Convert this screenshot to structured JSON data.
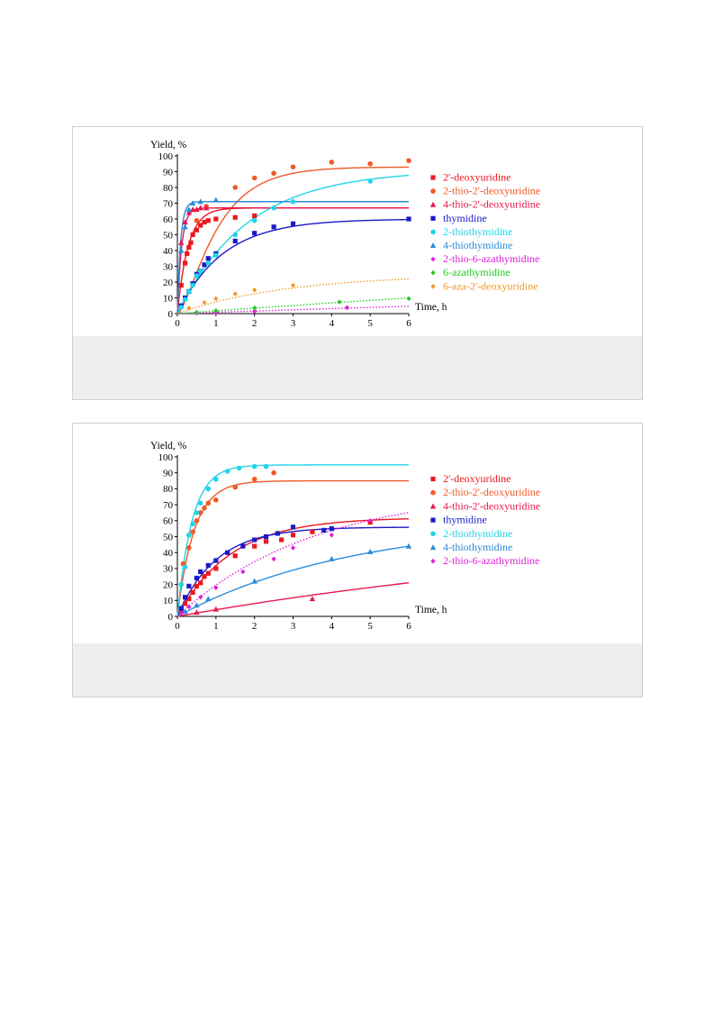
{
  "chart_data": [
    {
      "type": "scatter",
      "title": "",
      "ylabel": "Yield, %",
      "xlabel": "Time, h",
      "xlim": [
        0,
        6
      ],
      "ylim": [
        0,
        100
      ],
      "xticks": [
        0,
        1,
        2,
        3,
        4,
        5,
        6
      ],
      "yticks": [
        0,
        10,
        20,
        30,
        40,
        50,
        60,
        70,
        80,
        90,
        100
      ],
      "grid": false,
      "legend_position": "right",
      "series": [
        {
          "name": "2'-deoxyuridine",
          "color": "#e8191e",
          "marker": "square",
          "line": "solid",
          "fit": {
            "ymax": 67,
            "k": 3.6
          },
          "points": [
            [
              0.1,
              18
            ],
            [
              0.2,
              32
            ],
            [
              0.25,
              38
            ],
            [
              0.3,
              42
            ],
            [
              0.35,
              45
            ],
            [
              0.4,
              50
            ],
            [
              0.5,
              53
            ],
            [
              0.6,
              56
            ],
            [
              0.7,
              58
            ],
            [
              0.8,
              59
            ],
            [
              1.0,
              60
            ],
            [
              1.5,
              61
            ],
            [
              2.0,
              62
            ]
          ]
        },
        {
          "name": "2-thio-2'-deoxyuridine",
          "color": "#ef5a28",
          "marker": "circle",
          "line": "solid",
          "fit": {
            "ymax": 93,
            "k": 1.2,
            "lag": 0.15
          },
          "points": [
            [
              0.5,
              59
            ],
            [
              0.75,
              68
            ],
            [
              1.5,
              80
            ],
            [
              2.0,
              86
            ],
            [
              2.5,
              89
            ],
            [
              3.0,
              93
            ],
            [
              4.0,
              96
            ],
            [
              5.0,
              95
            ],
            [
              6.0,
              97
            ]
          ]
        },
        {
          "name": "4-thio-2'-deoxyuridine",
          "color": "#e8194f",
          "marker": "triangle",
          "line": "solid",
          "fit": {
            "ymax": 67,
            "k": 9
          },
          "points": [
            [
              0.1,
              45
            ],
            [
              0.2,
              58
            ],
            [
              0.3,
              64
            ],
            [
              0.4,
              66
            ],
            [
              0.5,
              66
            ],
            [
              0.6,
              67
            ],
            [
              0.75,
              67
            ]
          ]
        },
        {
          "name": "thymidine",
          "color": "#1a1ac8",
          "marker": "square",
          "line": "solid",
          "fit": {
            "ymax": 60,
            "k": 0.85
          },
          "points": [
            [
              0.1,
              5
            ],
            [
              0.2,
              10
            ],
            [
              0.3,
              14
            ],
            [
              0.4,
              19
            ],
            [
              0.5,
              25
            ],
            [
              0.6,
              27
            ],
            [
              0.7,
              31
            ],
            [
              0.8,
              35
            ],
            [
              1.0,
              38
            ],
            [
              1.5,
              46
            ],
            [
              2.0,
              51
            ],
            [
              2.5,
              55
            ],
            [
              3.0,
              57
            ],
            [
              6.0,
              60
            ]
          ]
        },
        {
          "name": "2-thiothymidine",
          "color": "#22d4e8",
          "marker": "circle",
          "line": "solid",
          "fit": {
            "ymax": 91,
            "k": 0.55
          },
          "points": [
            [
              0.1,
              4
            ],
            [
              0.2,
              9
            ],
            [
              0.3,
              14
            ],
            [
              0.4,
              18
            ],
            [
              0.5,
              24
            ],
            [
              0.6,
              27
            ],
            [
              0.8,
              32
            ],
            [
              1.0,
              37
            ],
            [
              1.5,
              50
            ],
            [
              2.0,
              59
            ],
            [
              2.5,
              67
            ],
            [
              3.0,
              71
            ],
            [
              5.0,
              84
            ]
          ]
        },
        {
          "name": "4-thiothymidine",
          "color": "#2a8cdc",
          "marker": "triangle",
          "line": "solid",
          "fit": {
            "ymax": 71,
            "k": 12
          },
          "points": [
            [
              0.1,
              40
            ],
            [
              0.2,
              55
            ],
            [
              0.3,
              66
            ],
            [
              0.4,
              70
            ],
            [
              0.6,
              71
            ],
            [
              1.0,
              72
            ]
          ]
        },
        {
          "name": "2-thio-6-azathymidine",
          "color": "#e020d8",
          "marker": "diamond",
          "line": "dotted",
          "fit": {
            "ymax": 60,
            "k": 0.0135
          },
          "points": [
            [
              0.5,
              0.3
            ],
            [
              1.0,
              0.6
            ],
            [
              2.0,
              1.5
            ],
            [
              4.4,
              3.8
            ]
          ]
        },
        {
          "name": "6-azathymidine",
          "color": "#28c828",
          "marker": "diamond",
          "line": "dotted",
          "fit": {
            "ymax": 60,
            "k": 0.03
          },
          "points": [
            [
              0.5,
              0.8
            ],
            [
              1.0,
              1.8
            ],
            [
              2.0,
              3.6
            ],
            [
              4.2,
              7.4
            ],
            [
              6.0,
              9.5
            ]
          ]
        },
        {
          "name": "6-aza-2'-deoxyuridine",
          "color": "#f09a28",
          "marker": "diamond",
          "line": "dotted",
          "fit": {
            "ymax": 25,
            "k": 0.35
          },
          "points": [
            [
              0.3,
              3.5
            ],
            [
              0.7,
              7
            ],
            [
              1.0,
              9.5
            ],
            [
              1.5,
              12.5
            ],
            [
              2.0,
              15
            ],
            [
              3.0,
              18
            ]
          ]
        }
      ]
    },
    {
      "type": "scatter",
      "title": "",
      "ylabel": "Yield, %",
      "xlabel": "Time, h",
      "xlim": [
        0,
        6
      ],
      "ylim": [
        0,
        100
      ],
      "xticks": [
        0,
        1,
        2,
        3,
        4,
        5,
        6
      ],
      "yticks": [
        0,
        10,
        20,
        30,
        40,
        50,
        60,
        70,
        80,
        90,
        100
      ],
      "grid": false,
      "legend_position": "right",
      "series": [
        {
          "name": "2'-deoxyuridine",
          "color": "#e8191e",
          "marker": "square",
          "line": "solid",
          "fit": {
            "ymax": 62,
            "k": 0.72
          },
          "points": [
            [
              0.1,
              4
            ],
            [
              0.2,
              8
            ],
            [
              0.3,
              11
            ],
            [
              0.4,
              15
            ],
            [
              0.5,
              19
            ],
            [
              0.6,
              21
            ],
            [
              0.7,
              25
            ],
            [
              0.8,
              27
            ],
            [
              1.0,
              30
            ],
            [
              1.5,
              38
            ],
            [
              2.0,
              44
            ],
            [
              2.3,
              47
            ],
            [
              2.7,
              48
            ],
            [
              3.0,
              51
            ],
            [
              3.5,
              53
            ],
            [
              5.0,
              59
            ]
          ]
        },
        {
          "name": "2-thio-2'-deoxyuridine",
          "color": "#ef5a28",
          "marker": "circle",
          "line": "solid",
          "fit": {
            "ymax": 85,
            "k": 2.3
          },
          "points": [
            [
              0.15,
              33
            ],
            [
              0.3,
              43
            ],
            [
              0.4,
              53
            ],
            [
              0.5,
              60
            ],
            [
              0.6,
              65
            ],
            [
              0.7,
              68
            ],
            [
              0.8,
              71
            ],
            [
              1.0,
              73
            ],
            [
              1.5,
              81
            ],
            [
              2.0,
              86
            ],
            [
              2.5,
              90
            ]
          ]
        },
        {
          "name": "4-thio-2'-deoxyuridine",
          "color": "#e8194f",
          "marker": "triangle",
          "line": "solid",
          "fit": {
            "ymax": 60,
            "k": 0.072
          },
          "points": [
            [
              0.5,
              2.5
            ],
            [
              1.0,
              4.5
            ],
            [
              3.5,
              11
            ]
          ]
        },
        {
          "name": "thymidine",
          "color": "#1a1ac8",
          "marker": "square",
          "line": "solid",
          "fit": {
            "ymax": 56,
            "k": 1.0
          },
          "points": [
            [
              0.1,
              5
            ],
            [
              0.2,
              12
            ],
            [
              0.3,
              19
            ],
            [
              0.5,
              24
            ],
            [
              0.6,
              28
            ],
            [
              0.8,
              32
            ],
            [
              1.0,
              35
            ],
            [
              1.3,
              40
            ],
            [
              1.7,
              44
            ],
            [
              2.0,
              48
            ],
            [
              2.3,
              50
            ],
            [
              2.6,
              52
            ],
            [
              3.0,
              56
            ],
            [
              3.8,
              54
            ],
            [
              4.0,
              55
            ]
          ]
        },
        {
          "name": "2-thiothymidine",
          "color": "#22d4e8",
          "marker": "circle",
          "line": "solid",
          "fit": {
            "ymax": 95,
            "k": 2.6
          },
          "points": [
            [
              0.1,
              20
            ],
            [
              0.2,
              31
            ],
            [
              0.3,
              51
            ],
            [
              0.4,
              58
            ],
            [
              0.5,
              65
            ],
            [
              0.6,
              71
            ],
            [
              0.8,
              80
            ],
            [
              1.0,
              86
            ],
            [
              1.3,
              91
            ],
            [
              1.6,
              93
            ],
            [
              2.0,
              94
            ],
            [
              2.3,
              94
            ]
          ]
        },
        {
          "name": "4-thiothymidine",
          "color": "#2a8cdc",
          "marker": "triangle",
          "line": "solid",
          "fit": {
            "ymax": 60,
            "k": 0.22
          },
          "points": [
            [
              0.2,
              3
            ],
            [
              0.5,
              7
            ],
            [
              0.8,
              11
            ],
            [
              2.0,
              22
            ],
            [
              4.0,
              36
            ],
            [
              5.0,
              40.5
            ],
            [
              6.0,
              44
            ]
          ]
        },
        {
          "name": "2-thio-6-azathymidine",
          "color": "#e020d8",
          "marker": "diamond",
          "line": "dotted",
          "fit": {
            "ymax": 80,
            "k": 0.28
          },
          "points": [
            [
              0.1,
              2
            ],
            [
              0.3,
              6
            ],
            [
              0.6,
              12
            ],
            [
              1.0,
              18
            ],
            [
              1.7,
              28
            ],
            [
              2.5,
              36
            ],
            [
              3.0,
              43
            ],
            [
              4.0,
              51
            ],
            [
              5.0,
              60
            ]
          ]
        }
      ]
    }
  ]
}
